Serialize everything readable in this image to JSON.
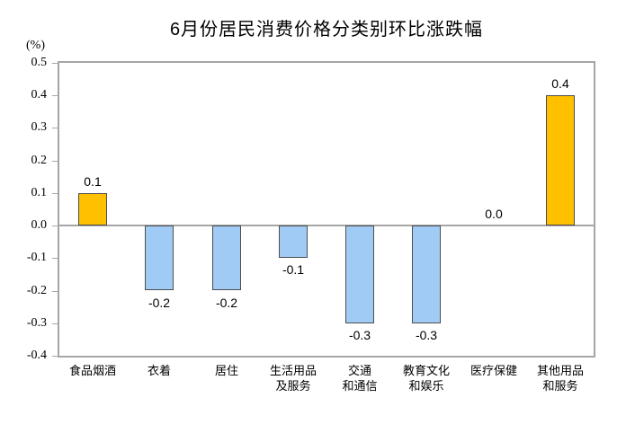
{
  "chart_data": {
    "type": "bar",
    "title": "6月份居民消费价格分类别环比涨跌幅",
    "unit_label": "(%)",
    "categories": [
      [
        "食品烟酒"
      ],
      [
        "衣着"
      ],
      [
        "居住"
      ],
      [
        "生活用品",
        "及服务"
      ],
      [
        "交通",
        "和通信"
      ],
      [
        "教育文化",
        "和娱乐"
      ],
      [
        "医疗保健"
      ],
      [
        "其他用品",
        "和服务"
      ]
    ],
    "values": [
      0.1,
      -0.2,
      -0.2,
      -0.1,
      -0.3,
      -0.3,
      0.0,
      0.4
    ],
    "value_labels": [
      "0.1",
      "-0.2",
      "-0.2",
      "-0.1",
      "-0.3",
      "-0.3",
      "0.0",
      "0.4"
    ],
    "xlabel": "",
    "ylabel": "(%)",
    "ylim": [
      -0.4,
      0.5
    ],
    "ytick_labels": [
      "0.5",
      "0.4",
      "0.3",
      "0.2",
      "0.1",
      "0.0",
      "-0.1",
      "-0.2",
      "-0.3",
      "-0.4"
    ],
    "grid": "off",
    "legend": "none",
    "colors": {
      "positive_bar": "#ffc000",
      "negative_bar": "#a0cbf5",
      "bar_border": "#4d4d4d",
      "axis": "#a6a6a6",
      "text": "#000000"
    }
  }
}
